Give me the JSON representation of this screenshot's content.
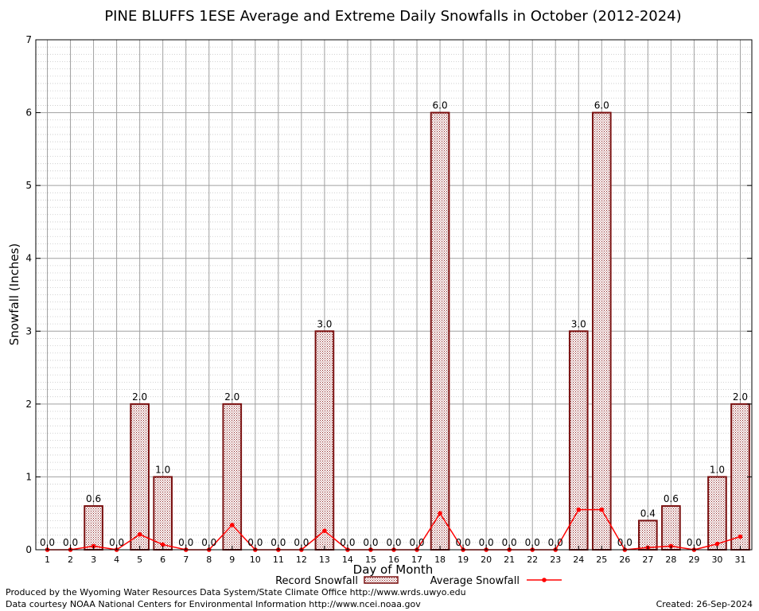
{
  "chart_data": {
    "type": "bar",
    "title": "PINE BLUFFS 1ESE Average and Extreme Daily Snowfalls in October (2012-2024)",
    "xlabel": "Day of Month",
    "ylabel": "Snowfall (Inches)",
    "ylim": [
      0,
      7
    ],
    "yticks": [
      "0",
      "1",
      "2",
      "3",
      "4",
      "5",
      "6",
      "7"
    ],
    "categories": [
      "1",
      "2",
      "3",
      "4",
      "5",
      "6",
      "7",
      "8",
      "9",
      "10",
      "11",
      "12",
      "13",
      "14",
      "15",
      "16",
      "17",
      "18",
      "19",
      "20",
      "21",
      "22",
      "23",
      "24",
      "25",
      "26",
      "27",
      "28",
      "29",
      "30",
      "31"
    ],
    "series": [
      {
        "name": "Record Snowfall",
        "values": [
          0,
          0,
          0.6,
          0,
          2,
          1,
          0,
          0,
          2,
          0,
          0,
          0,
          3,
          0,
          0,
          0,
          0,
          6,
          0,
          0,
          0,
          0,
          0,
          3,
          6,
          0,
          0.4,
          0.6,
          0,
          1,
          2
        ],
        "labels": [
          "0.0",
          "0.0",
          "0.6",
          "0.0",
          "2.0",
          "1.0",
          "0.0",
          "0.0",
          "2.0",
          "0.0",
          "0.0",
          "0.0",
          "3.0",
          "0.0",
          "0.0",
          "0.0",
          "0.0",
          "6.0",
          "0.0",
          "0.0",
          "0.0",
          "0.0",
          "0.0",
          "3.0",
          "6.0",
          "0.0",
          "0.4",
          "0.6",
          "0.0",
          "1.0",
          "2.0"
        ]
      },
      {
        "name": "Average Snowfall",
        "values": [
          0,
          0,
          0.05,
          0,
          0.21,
          0.07,
          0,
          0,
          0.34,
          0,
          0,
          0,
          0.26,
          0,
          0,
          0,
          0,
          0.5,
          0,
          0,
          0,
          0,
          0,
          0.55,
          0.55,
          0,
          0.03,
          0.05,
          0,
          0.08,
          0.18
        ]
      }
    ],
    "grid": true,
    "legend_position": "bottom-center",
    "colors": {
      "bar_edge": "#7a1010",
      "bar_fill": "#b08a8a",
      "avg_line": "#ff0000",
      "grid": "#a0a0a0"
    }
  },
  "footer": {
    "line1": "Produced by the Wyoming Water Resources Data System/State Climate Office http://www.wrds.uwyo.edu",
    "line2": "Data courtesy NOAA National Centers for Environmental Information http://www.ncei.noaa.gov",
    "created": "Created:  26-Sep-2024"
  }
}
